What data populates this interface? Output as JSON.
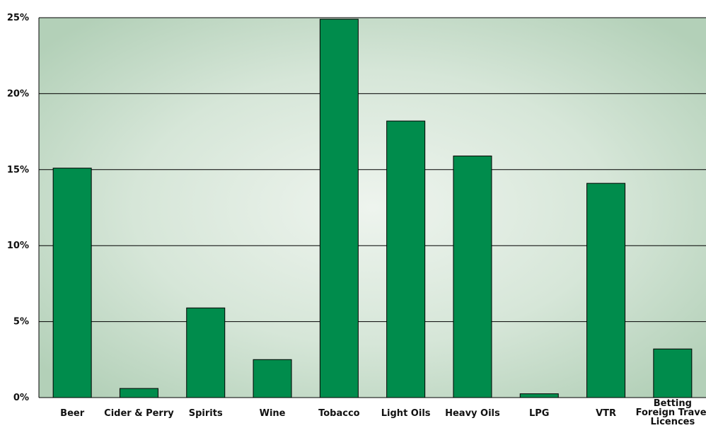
{
  "chart_data": {
    "type": "bar",
    "title": "",
    "xlabel": "",
    "ylabel": "",
    "ylim": [
      0,
      25
    ],
    "y_ticks": [
      0,
      5,
      10,
      15,
      20,
      25
    ],
    "y_tick_labels": [
      "0%",
      "5%",
      "10%",
      "15%",
      "20%",
      "25%"
    ],
    "y_unit": "%",
    "grid": true,
    "legend": "none",
    "bar_color": "#008C4C",
    "background": "radial green gradient",
    "categories": [
      [
        "Beer"
      ],
      [
        "Cider & Perry"
      ],
      [
        "Spirits"
      ],
      [
        "Wine"
      ],
      [
        "Tobacco"
      ],
      [
        "Light Oils"
      ],
      [
        "Heavy Oils"
      ],
      [
        "LPG"
      ],
      [
        "VTR"
      ],
      [
        "Betting",
        "Foreign Travel",
        "Licences"
      ]
    ],
    "values": [
      15.1,
      0.6,
      5.9,
      2.5,
      24.9,
      18.2,
      15.9,
      0.25,
      14.1,
      3.2
    ]
  }
}
